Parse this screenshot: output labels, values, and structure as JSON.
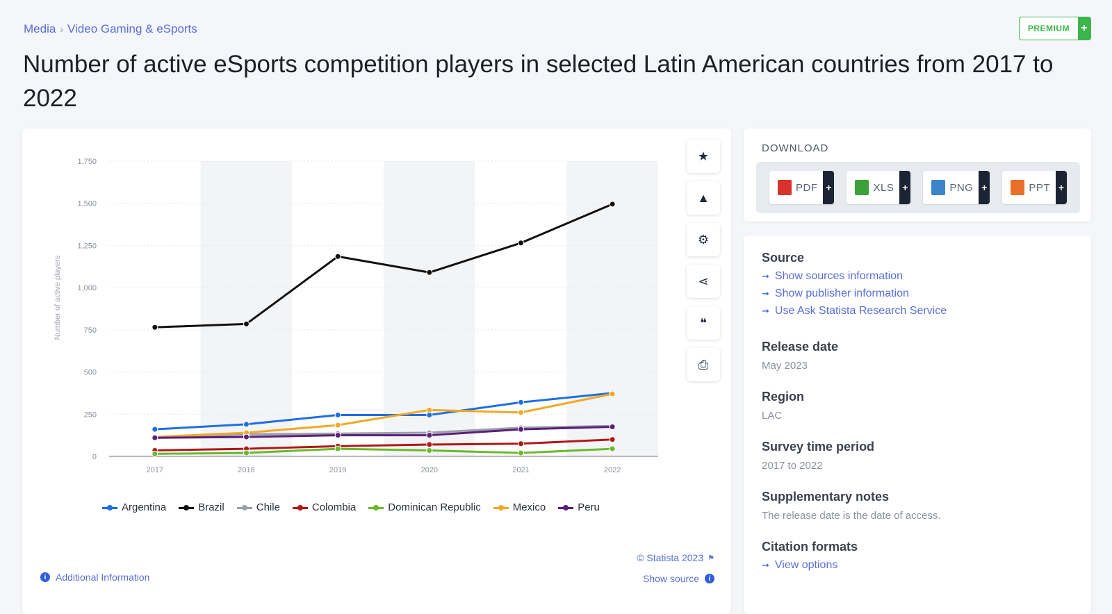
{
  "breadcrumb": {
    "items": [
      "Media",
      "Video Gaming & eSports"
    ],
    "separator": "›"
  },
  "premium": {
    "label": "PREMIUM",
    "plus": "+"
  },
  "page_title": "Number of active eSports competition players in selected Latin American countries from 2017 to 2022",
  "chart_toolbar": [
    {
      "name": "favorite-star-icon",
      "glyph": "★"
    },
    {
      "name": "notification-bell-icon",
      "glyph": "▲"
    },
    {
      "name": "settings-gear-icon",
      "glyph": "⚙"
    },
    {
      "name": "share-icon",
      "glyph": "⋖"
    },
    {
      "name": "cite-quote-icon",
      "glyph": "❝"
    },
    {
      "name": "print-icon",
      "glyph": "⎙"
    }
  ],
  "chart_footer": {
    "copyright": "© Statista 2023",
    "additional_info": "Additional Information",
    "show_source": "Show source"
  },
  "download": {
    "title": "DOWNLOAD",
    "buttons": [
      {
        "label": "PDF",
        "color": "#d9312b"
      },
      {
        "label": "XLS",
        "color": "#3ba23a"
      },
      {
        "label": "PNG",
        "color": "#3a86c8"
      },
      {
        "label": "PPT",
        "color": "#e8702a"
      }
    ],
    "plus": "+"
  },
  "info": {
    "source_heading": "Source",
    "source_links": [
      "Show sources information",
      "Show publisher information",
      "Use Ask Statista Research Service"
    ],
    "release_heading": "Release date",
    "release_value": "May 2023",
    "region_heading": "Region",
    "region_value": "LAC",
    "survey_heading": "Survey time period",
    "survey_value": "2017 to 2022",
    "notes_heading": "Supplementary notes",
    "notes_value": "The release date is the date of access.",
    "citation_heading": "Citation formats",
    "citation_link": "View options"
  },
  "chart_data": {
    "type": "line",
    "x": [
      "2017",
      "2018",
      "2019",
      "2020",
      "2021",
      "2022"
    ],
    "ylabel": "Number of active players",
    "ylim": [
      0,
      1750
    ],
    "yticks": [
      "0",
      "250",
      "500",
      "750",
      "1,000",
      "1,250",
      "1,500",
      "1,750"
    ],
    "grid": true,
    "legend_position": "bottom",
    "series": [
      {
        "name": "Argentina",
        "color": "#1f6fe0",
        "values": [
          160,
          190,
          245,
          245,
          320,
          375
        ]
      },
      {
        "name": "Brazil",
        "color": "#111111",
        "values": [
          765,
          785,
          1185,
          1090,
          1265,
          1495
        ]
      },
      {
        "name": "Chile",
        "color": "#9aa0a8",
        "values": [
          110,
          130,
          135,
          140,
          170,
          180
        ]
      },
      {
        "name": "Colombia",
        "color": "#b01818",
        "values": [
          35,
          45,
          60,
          70,
          75,
          100
        ]
      },
      {
        "name": "Dominican Republic",
        "color": "#6bb82a",
        "values": [
          15,
          20,
          45,
          35,
          20,
          45
        ]
      },
      {
        "name": "Mexico",
        "color": "#f0a926",
        "values": [
          115,
          140,
          185,
          275,
          260,
          370
        ]
      },
      {
        "name": "Peru",
        "color": "#5b1f7a",
        "values": [
          110,
          115,
          125,
          125,
          160,
          175
        ]
      }
    ]
  }
}
